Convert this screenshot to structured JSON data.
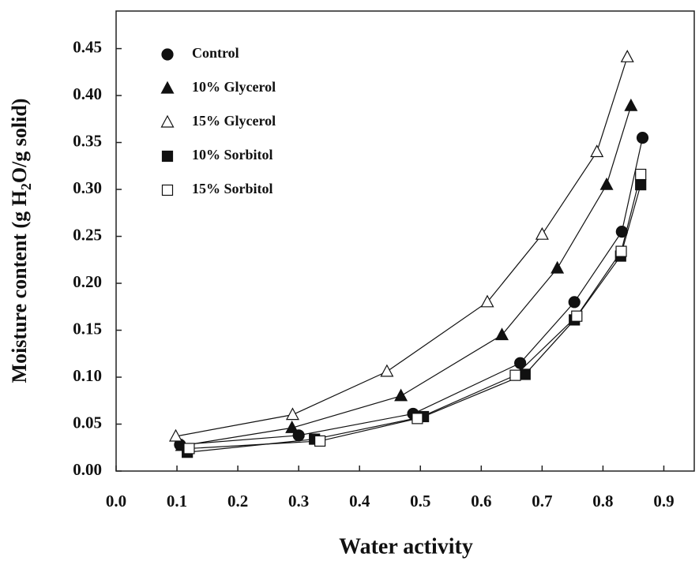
{
  "chart_data": {
    "type": "scatter",
    "xlabel": "Water activity",
    "ylabel_parts": [
      "Moisture  content (g H",
      "2",
      "O/g solid)"
    ],
    "xlim": [
      0,
      0.95
    ],
    "xticks": [
      {
        "value": 0,
        "label": "0.0"
      },
      0.1,
      0.2,
      0.3,
      0.4,
      0.5,
      0.6,
      0.7,
      0.8,
      0.9
    ],
    "ylim": [
      0,
      0.49
    ],
    "yticks": [
      {
        "value": 0,
        "label": "0.00"
      },
      0.05,
      {
        "value": 0.1,
        "label": "0.10"
      },
      0.15,
      {
        "value": 0.2,
        "label": "0.20"
      },
      0.25,
      {
        "value": 0.3,
        "label": "0.30"
      },
      0.35,
      {
        "value": 0.4,
        "label": "0.40"
      },
      0.45
    ],
    "legend": "upper left",
    "series": [
      {
        "name": "Control",
        "color": "#111111",
        "marker": "circle",
        "filled": true,
        "x": [
          0.105,
          0.3,
          0.488,
          0.664,
          0.753,
          0.831,
          0.865
        ],
        "values": [
          0.028,
          0.038,
          0.061,
          0.115,
          0.18,
          0.255,
          0.355
        ]
      },
      {
        "name": "10% Glycerol",
        "color": "#111111",
        "marker": "triangle",
        "filled": true,
        "x": [
          0.108,
          0.289,
          0.468,
          0.634,
          0.725,
          0.806,
          0.846
        ],
        "values": [
          0.027,
          0.046,
          0.08,
          0.145,
          0.216,
          0.305,
          0.389
        ]
      },
      {
        "name": "15% Glycerol",
        "color": "#111111",
        "marker": "triangle",
        "filled": false,
        "x": [
          0.098,
          0.29,
          0.445,
          0.61,
          0.7,
          0.79,
          0.84
        ],
        "values": [
          0.037,
          0.06,
          0.106,
          0.18,
          0.252,
          0.34,
          0.441
        ]
      },
      {
        "name": "10% Sorbitol",
        "color": "#111111",
        "marker": "square",
        "filled": true,
        "x": [
          0.117,
          0.326,
          0.505,
          0.672,
          0.753,
          0.829,
          0.862
        ],
        "values": [
          0.02,
          0.034,
          0.058,
          0.103,
          0.161,
          0.229,
          0.305
        ]
      },
      {
        "name": "15% Sorbitol",
        "color": "#111111",
        "marker": "square",
        "filled": false,
        "x": [
          0.12,
          0.335,
          0.495,
          0.656,
          0.757,
          0.83,
          0.862
        ],
        "values": [
          0.024,
          0.032,
          0.056,
          0.102,
          0.165,
          0.234,
          0.316
        ]
      }
    ]
  }
}
